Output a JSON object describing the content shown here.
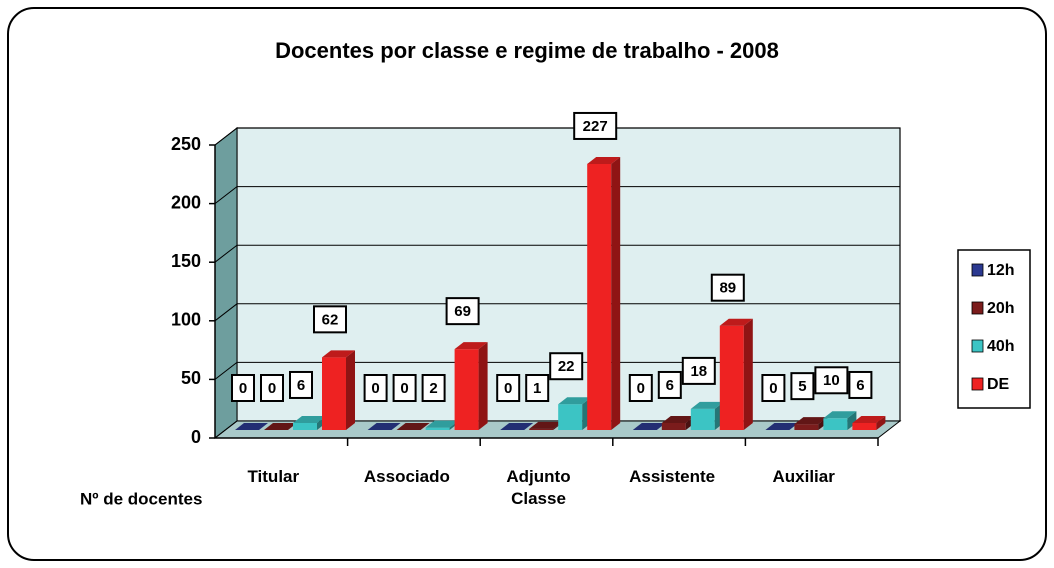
{
  "chart_data": {
    "type": "bar3d",
    "title": "Docentes por classe e regime de trabalho  - 2008",
    "ylabel": "Nº de docentes",
    "categories": [
      "Titular",
      "Associado",
      "Adjunto Classe",
      "Assistente",
      "Auxiliar"
    ],
    "series": [
      {
        "name": "12h",
        "color": "#2b3990",
        "values": [
          0,
          0,
          0,
          0,
          0
        ]
      },
      {
        "name": "20h",
        "color": "#7b1c1c",
        "values": [
          0,
          0,
          1,
          6,
          5
        ]
      },
      {
        "name": "40h",
        "color": "#3cc4c4",
        "values": [
          6,
          2,
          22,
          18,
          10
        ]
      },
      {
        "name": "DE",
        "color": "#ee2222",
        "values": [
          62,
          69,
          227,
          89,
          6
        ]
      }
    ],
    "ylim": [
      0,
      250
    ],
    "yticks": [
      0,
      50,
      100,
      150,
      200,
      250
    ],
    "grid": true,
    "legend": "right"
  }
}
